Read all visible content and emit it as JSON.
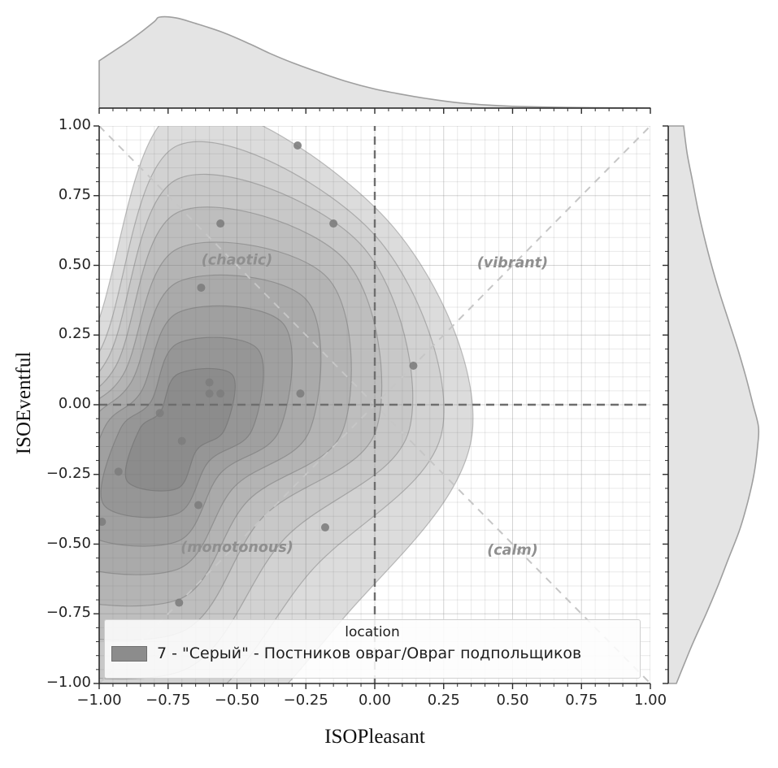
{
  "axes": {
    "xlabel": "ISOPleasant",
    "ylabel": "ISOEventful"
  },
  "legend": {
    "title": "location",
    "entries": [
      {
        "label": "7 - \"Серый\" - Постников овраг/Овраг подпольщиков",
        "swatch_color": "#8c8c8c"
      }
    ]
  },
  "chart_data": {
    "type": "scatter",
    "subtype": "jointplot-kde-contour",
    "title": "",
    "xlabel": "ISOPleasant",
    "ylabel": "ISOEventful",
    "xlim": [
      -1,
      1
    ],
    "ylim": [
      -1,
      1
    ],
    "grid": {
      "visible": true,
      "minor_step": 0.05,
      "major_step": 0.25
    },
    "legend_position": "lower center",
    "xticks": {
      "values": [
        -1,
        -0.75,
        -0.5,
        -0.25,
        0,
        0.25,
        0.5,
        0.75,
        1
      ],
      "labels": [
        "−1.00",
        "−0.75",
        "−0.50",
        "−0.25",
        "0.00",
        "0.25",
        "0.50",
        "0.75",
        "1.00"
      ]
    },
    "yticks": {
      "values": [
        -1,
        -0.75,
        -0.5,
        -0.25,
        0,
        0.25,
        0.5,
        0.75,
        1
      ],
      "labels": [
        "−1.00",
        "−0.75",
        "−0.50",
        "−0.25",
        "0.00",
        "0.25",
        "0.50",
        "0.75",
        "1.00"
      ]
    },
    "quadrant_labels": [
      {
        "text": "(chaotic)",
        "x": -0.5,
        "y": 0.52
      },
      {
        "text": "(vibrant)",
        "x": 0.5,
        "y": 0.51
      },
      {
        "text": "(monotonous)",
        "x": -0.5,
        "y": -0.51
      },
      {
        "text": "(calm)",
        "x": 0.5,
        "y": -0.52
      }
    ],
    "reference_lines": [
      {
        "x1": -1,
        "y1": -1,
        "x2": 1,
        "y2": 1,
        "style": "diagonal"
      },
      {
        "x1": -1,
        "y1": 1,
        "x2": 1,
        "y2": -1,
        "style": "diagonal"
      },
      {
        "x1": -1,
        "y1": 0,
        "x2": 1,
        "y2": 0,
        "style": "axis"
      },
      {
        "x1": 0,
        "y1": -1,
        "x2": 0,
        "y2": 1,
        "style": "axis"
      }
    ],
    "series": [
      {
        "name": "7 - \"Серый\" - Постников овраг/Овраг подпольщиков",
        "color": "#7d7d7d",
        "points": [
          [
            -0.28,
            0.93
          ],
          [
            -0.56,
            0.65
          ],
          [
            -0.15,
            0.65
          ],
          [
            -0.63,
            0.42
          ],
          [
            -0.6,
            0.08
          ],
          [
            -0.6,
            0.04
          ],
          [
            -0.56,
            0.04
          ],
          [
            -0.27,
            0.04
          ],
          [
            -0.78,
            -0.03
          ],
          [
            -0.7,
            -0.13
          ],
          [
            -0.93,
            -0.24
          ],
          [
            -0.99,
            -0.42
          ],
          [
            -0.64,
            -0.36
          ],
          [
            -0.18,
            -0.44
          ],
          [
            -0.71,
            -0.71
          ],
          [
            0.14,
            0.14
          ]
        ]
      }
    ],
    "kde": {
      "center": [
        -0.715,
        -0.09
      ],
      "angles": [
        0,
        45,
        90,
        135,
        180,
        225,
        270,
        315
      ],
      "levels": [
        {
          "color": "#dcdcdc",
          "radii": [
            1.07,
            1.07,
            1.15,
            0.45,
            0.62,
            1.38,
            1.18,
            0.9
          ]
        },
        {
          "color": "#d2d2d2",
          "radii": [
            0.96,
            1.0,
            1.02,
            0.4,
            0.56,
            1.2,
            1.02,
            0.7
          ]
        },
        {
          "color": "#c8c8c8",
          "radii": [
            0.84,
            0.94,
            0.9,
            0.36,
            0.5,
            1.04,
            0.87,
            0.55
          ]
        },
        {
          "color": "#bebebe",
          "radii": [
            0.72,
            0.86,
            0.78,
            0.32,
            0.45,
            0.89,
            0.73,
            0.44
          ]
        },
        {
          "color": "#b4b4b4",
          "radii": [
            0.6,
            0.77,
            0.65,
            0.28,
            0.39,
            0.75,
            0.61,
            0.36
          ]
        },
        {
          "color": "#aaaaaa",
          "radii": [
            0.48,
            0.66,
            0.53,
            0.24,
            0.33,
            0.62,
            0.5,
            0.29
          ]
        },
        {
          "color": "#a0a0a0",
          "radii": [
            0.37,
            0.54,
            0.42,
            0.19,
            0.27,
            0.5,
            0.4,
            0.22
          ]
        },
        {
          "color": "#969696",
          "radii": [
            0.27,
            0.41,
            0.31,
            0.14,
            0.21,
            0.38,
            0.3,
            0.16
          ]
        },
        {
          "color": "#8c8c8c",
          "radii": [
            0.17,
            0.28,
            0.2,
            0.09,
            0.14,
            0.26,
            0.21,
            0.1
          ]
        }
      ]
    },
    "marginal_top": {
      "axis": "ISOPleasant",
      "samples": [
        [
          -1,
          0.52
        ],
        [
          -0.95,
          0.62
        ],
        [
          -0.9,
          0.72
        ],
        [
          -0.85,
          0.83
        ],
        [
          -0.8,
          0.95
        ],
        [
          -0.78,
          1.0
        ],
        [
          -0.72,
          0.99
        ],
        [
          -0.65,
          0.93
        ],
        [
          -0.55,
          0.83
        ],
        [
          -0.45,
          0.7
        ],
        [
          -0.38,
          0.6
        ],
        [
          -0.3,
          0.5
        ],
        [
          -0.2,
          0.39
        ],
        [
          -0.1,
          0.29
        ],
        [
          0,
          0.21
        ],
        [
          0.1,
          0.15
        ],
        [
          0.2,
          0.1
        ],
        [
          0.3,
          0.06
        ],
        [
          0.4,
          0.035
        ],
        [
          0.5,
          0.02
        ],
        [
          0.65,
          0.01
        ],
        [
          0.8,
          0.004
        ],
        [
          1,
          0.001
        ]
      ]
    },
    "marginal_right": {
      "axis": "ISOEventful",
      "samples": [
        [
          1,
          0.17
        ],
        [
          0.9,
          0.21
        ],
        [
          0.8,
          0.27
        ],
        [
          0.7,
          0.33
        ],
        [
          0.6,
          0.4
        ],
        [
          0.5,
          0.48
        ],
        [
          0.4,
          0.57
        ],
        [
          0.3,
          0.67
        ],
        [
          0.2,
          0.77
        ],
        [
          0.1,
          0.86
        ],
        [
          0,
          0.94
        ],
        [
          -0.08,
          1.0
        ],
        [
          -0.15,
          0.99
        ],
        [
          -0.25,
          0.95
        ],
        [
          -0.35,
          0.88
        ],
        [
          -0.45,
          0.79
        ],
        [
          -0.55,
          0.67
        ],
        [
          -0.65,
          0.55
        ],
        [
          -0.75,
          0.42
        ],
        [
          -0.85,
          0.28
        ],
        [
          -0.92,
          0.19
        ],
        [
          -1,
          0.09
        ]
      ]
    },
    "style": {
      "contour_stroke": "rgba(90,90,90,0.35)",
      "marginal_fill": "#e4e4e4",
      "marginal_stroke": "#9f9f9f",
      "grid_minor": "rgba(120,120,120,0.16)",
      "grid_major": "rgba(120,120,120,0.32)",
      "spine": "#2b2b2b",
      "zero_line": "#6e6e6e",
      "diagonal_line": "#c6c6c6",
      "quadrant_label_color": "#8f8f8f"
    }
  }
}
